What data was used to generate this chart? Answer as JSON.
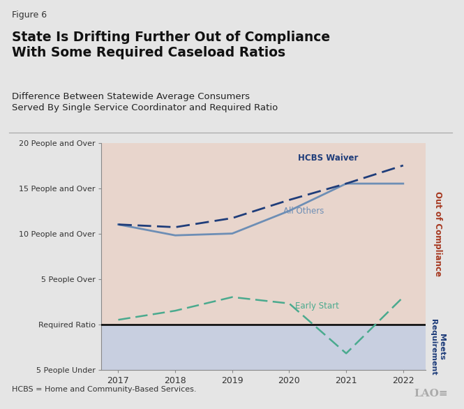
{
  "figure_label": "Figure 6",
  "title": "State Is Drifting Further Out of Compliance\nWith Some Required Caseload Ratios",
  "subtitle": "Difference Between Statewide Average Consumers\nServed By Single Service Coordinator and Required Ratio",
  "footnote": "HCBS = Home and Community-Based Services.",
  "years": [
    2017,
    2018,
    2019,
    2020,
    2021,
    2022
  ],
  "hcbs_waiver": [
    11.0,
    10.7,
    11.7,
    13.7,
    15.5,
    17.5
  ],
  "all_others": [
    11.0,
    9.8,
    10.0,
    12.5,
    15.5,
    15.5
  ],
  "early_start": [
    0.5,
    1.5,
    3.0,
    2.3,
    -3.2,
    3.0
  ],
  "hcbs_color": "#1f3d7a",
  "all_others_color": "#6d8eb5",
  "early_start_color": "#4aaa8e",
  "bg_out_color": "#e8d5cc",
  "bg_meets_color": "#c8cfe0",
  "required_ratio_line_color": "#000000",
  "out_label_color": "#a63820",
  "meets_label_color": "#1f3d7a",
  "ylim_min": -5,
  "ylim_max": 20,
  "yticks": [
    20,
    15,
    10,
    5,
    0,
    -5
  ],
  "ytick_labels": [
    "20 People and Over",
    "15 People and Over",
    "10 People and Over",
    "5 People Over",
    "Required Ratio",
    "5 People Under"
  ],
  "background_color": "#e5e5e5"
}
